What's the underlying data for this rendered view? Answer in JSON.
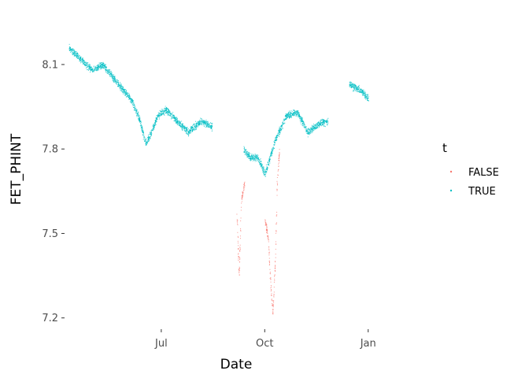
{
  "chart_data": {
    "type": "scatter",
    "xlabel": "Date",
    "ylabel": "FET_PHINT",
    "ylim": [
      7.16,
      8.29
    ],
    "xlim": [
      "2023-04-06",
      "2024-02-15"
    ],
    "x_ticks": [
      {
        "date": "2023-07-01",
        "label": "Jul"
      },
      {
        "date": "2023-10-01",
        "label": "Oct"
      },
      {
        "date": "2024-01-01",
        "label": "Jan"
      }
    ],
    "y_ticks": [
      {
        "value": 7.2,
        "label": "7.2"
      },
      {
        "value": 7.5,
        "label": "7.5"
      },
      {
        "value": 7.8,
        "label": "7.8"
      },
      {
        "value": 8.1,
        "label": "8.1"
      }
    ],
    "grid": false,
    "legend": {
      "title": "t",
      "position": "right",
      "items": [
        {
          "label": "FALSE",
          "color": "#F8766D"
        },
        {
          "label": "TRUE",
          "color": "#00BFC4"
        }
      ]
    },
    "series": [
      {
        "name": "TRUE",
        "color": "#00BFC4",
        "trend": [
          [
            "2023-04-10",
            8.16
          ],
          [
            "2023-04-20",
            8.12
          ],
          [
            "2023-05-01",
            8.08
          ],
          [
            "2023-05-10",
            8.1
          ],
          [
            "2023-05-20",
            8.05
          ],
          [
            "2023-05-28",
            8.01
          ],
          [
            "2023-06-05",
            7.97
          ],
          [
            "2023-06-12",
            7.9
          ],
          [
            "2023-06-17",
            7.82
          ],
          [
            "2023-06-22",
            7.86
          ],
          [
            "2023-06-28",
            7.92
          ],
          [
            "2023-07-05",
            7.94
          ],
          [
            "2023-07-15",
            7.9
          ],
          [
            "2023-07-25",
            7.86
          ],
          [
            "2023-08-05",
            7.9
          ],
          [
            "2023-08-15",
            7.88
          ],
          [
            "2023-09-12",
            7.8
          ],
          [
            "2023-09-18",
            7.77
          ],
          [
            "2023-09-25",
            7.77
          ],
          [
            "2023-10-01",
            7.71
          ],
          [
            "2023-10-10",
            7.83
          ],
          [
            "2023-10-20",
            7.92
          ],
          [
            "2023-10-30",
            7.93
          ],
          [
            "2023-11-08",
            7.86
          ],
          [
            "2023-11-18",
            7.89
          ],
          [
            "2023-11-26",
            7.9
          ],
          [
            "2023-12-15",
            8.03
          ],
          [
            "2023-12-25",
            8.01
          ],
          [
            "2024-01-01",
            7.98
          ]
        ]
      },
      {
        "name": "FALSE",
        "color": "#F8766D",
        "trend": [
          [
            "2023-08-17",
            7.72
          ],
          [
            "2023-09-06",
            7.58
          ],
          [
            "2023-09-08",
            7.35
          ],
          [
            "2023-09-10",
            7.62
          ],
          [
            "2023-09-13",
            7.68
          ],
          [
            "2023-10-01",
            7.55
          ],
          [
            "2023-10-04",
            7.48
          ],
          [
            "2023-10-06",
            7.32
          ],
          [
            "2023-10-08",
            7.22
          ],
          [
            "2023-10-10",
            7.38
          ],
          [
            "2023-10-12",
            7.7
          ],
          [
            "2023-10-14",
            7.8
          ]
        ]
      }
    ]
  }
}
